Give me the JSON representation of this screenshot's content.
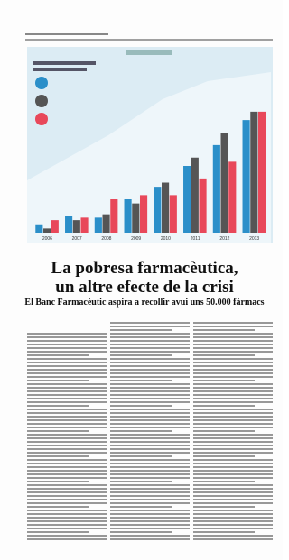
{
  "headline": {
    "title": "La pobresa farmacèutica, un altre efecte de la crisi",
    "subtitle": "El Banc Farmacèutic aspira a recollir avui uns 50.000 fàrmacs"
  },
  "chart_data": {
    "type": "bar",
    "categories": [
      "2006",
      "2007",
      "2008",
      "2009",
      "2010",
      "2011",
      "2012",
      "2013"
    ],
    "series": [
      {
        "color": "#2b8fc9",
        "values": [
          10,
          20,
          18,
          40,
          55,
          80,
          105,
          135
        ]
      },
      {
        "color": "#555555",
        "values": [
          5,
          15,
          22,
          35,
          60,
          90,
          120,
          145
        ]
      },
      {
        "color": "#e8485a",
        "values": [
          15,
          18,
          40,
          45,
          45,
          65,
          85,
          145
        ]
      }
    ],
    "ylim": [
      0,
      160
    ]
  }
}
